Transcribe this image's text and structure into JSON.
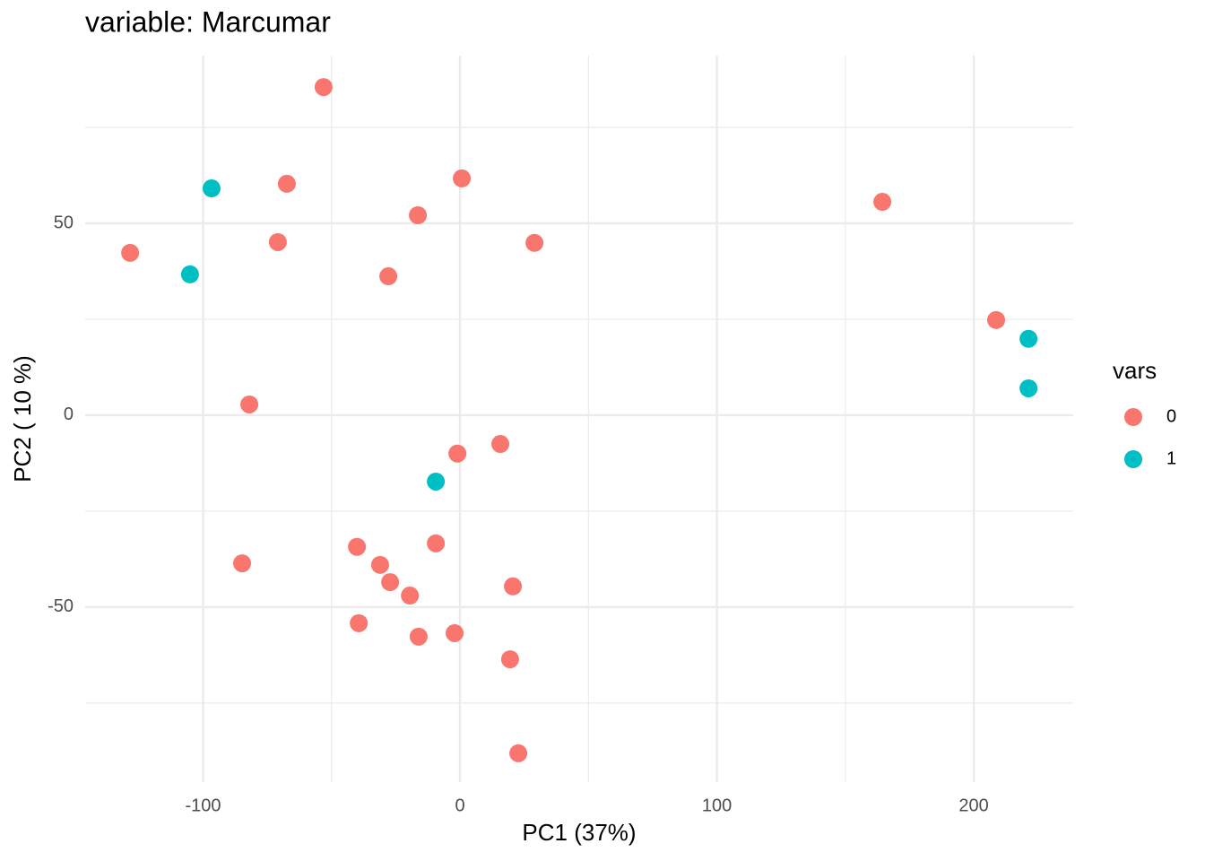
{
  "chart_data": {
    "type": "scatter",
    "title": "variable: Marcumar",
    "x_label": "PC1 (37%)",
    "y_label": "PC2 ( 10 %)",
    "legend_title": "vars",
    "legend_position": "right",
    "grid": true,
    "xlim": [
      -145.9,
      238.7
    ],
    "ylim": [
      -95.6,
      93.7
    ],
    "xticks": [
      -100,
      0,
      100,
      200
    ],
    "yticks": [
      -50,
      0,
      50
    ],
    "xminor": [
      -50,
      50,
      150
    ],
    "yminor": [
      -75,
      -25,
      25,
      75
    ],
    "series": [
      {
        "name": "0",
        "color": "#F8766D",
        "x": [
          -53.1,
          -67.4,
          0.7,
          -16.4,
          -70.9,
          -128.4,
          29.0,
          -27.9,
          164.4,
          208.7,
          -82.0,
          15.7,
          -1.0,
          -9.4,
          -40.1,
          -84.8,
          -31.1,
          -27.2,
          20.6,
          -19.5,
          -39.4,
          -2.1,
          -16.1,
          19.5,
          22.7
        ],
        "values": [
          85.5,
          60.3,
          61.7,
          52.1,
          45.1,
          42.3,
          44.9,
          36.2,
          55.6,
          24.8,
          2.8,
          -7.5,
          -10.0,
          -33.4,
          -34.3,
          -38.6,
          -39.0,
          -43.5,
          -44.6,
          -47.0,
          -54.2,
          -56.8,
          -57.7,
          -63.6,
          -88.1
        ]
      },
      {
        "name": "1",
        "color": "#00BFC4",
        "x": [
          -96.7,
          -105.1,
          221.3,
          221.3,
          -9.4
        ],
        "values": [
          59.1,
          36.7,
          19.9,
          7.0,
          -17.3
        ]
      }
    ]
  }
}
